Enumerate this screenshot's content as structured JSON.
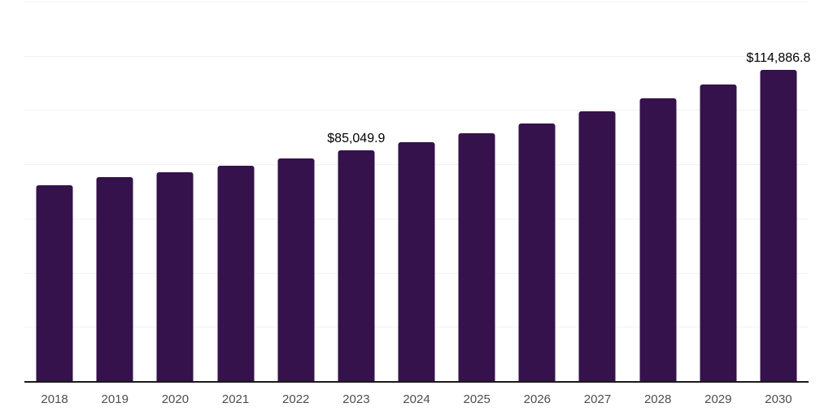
{
  "chart_data": {
    "type": "bar",
    "title": "",
    "xlabel": "",
    "ylabel": "",
    "categories": [
      "2018",
      "2019",
      "2020",
      "2021",
      "2022",
      "2023",
      "2024",
      "2025",
      "2026",
      "2027",
      "2028",
      "2029",
      "2030"
    ],
    "values": [
      72400,
      75200,
      77100,
      79500,
      82200,
      85049.9,
      88100,
      91350,
      95050,
      99550,
      104200,
      109300,
      114886.8
    ],
    "data_labels": [
      null,
      null,
      null,
      null,
      null,
      "$85,049.9",
      null,
      null,
      null,
      null,
      null,
      null,
      "$114,886.8"
    ],
    "ylim": [
      0,
      140000
    ],
    "gridline_step": 20000,
    "grid": "horizontal-only",
    "legend": "none",
    "y_axis_tick_labels": "none",
    "bar_color": "#35124b",
    "axis_line_color": "#1a1a1a",
    "gridline_color": "#f2f2f2",
    "x_tick_label_color": "#4d4d4d",
    "data_label_color": "#000000"
  }
}
